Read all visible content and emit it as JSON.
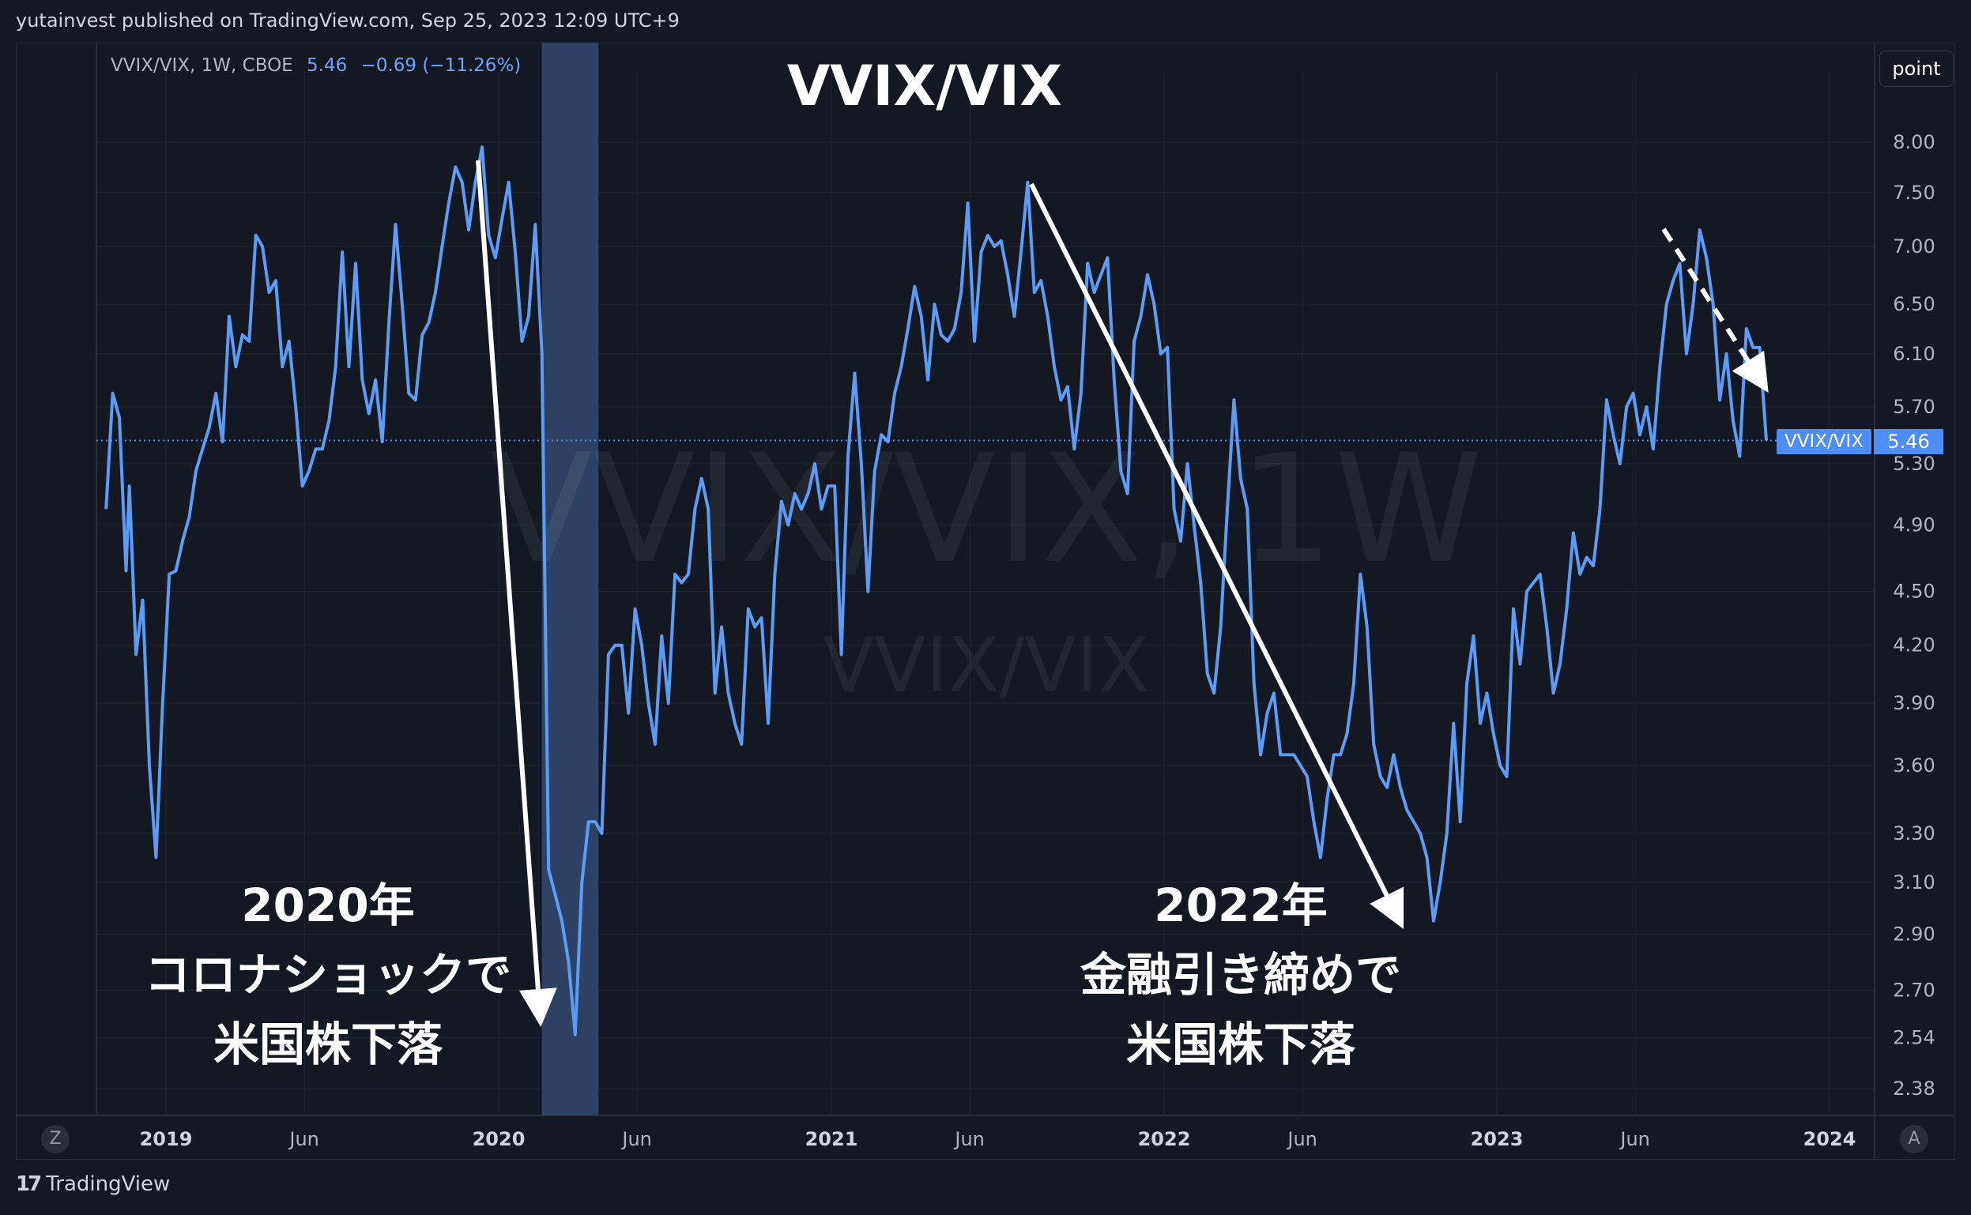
{
  "header": {
    "text": "yutainvest published on TradingView.com, Sep 25, 2023 12:09 UTC+9"
  },
  "legend": {
    "symbol": "VVIX/VIX, 1W, CBOE",
    "value": "5.46",
    "change": "−0.69 (−11.26%)"
  },
  "toolbar": {
    "scale_mode": "point"
  },
  "watermark": {
    "main": "VVIX/VIX, 1W",
    "sub": "VVIX/VIX"
  },
  "annotations": {
    "title": "VVIX/VIX",
    "left": {
      "line1": "2020年",
      "line2": "コロナショックで",
      "line3": "米国株下落"
    },
    "right": {
      "line1": "2022年",
      "line2": "金融引き締めで",
      "line3": "米国株下落"
    }
  },
  "last_price": {
    "label": "VVIX/VIX",
    "value": "5.46"
  },
  "footer": {
    "brand": "TradingView",
    "logo": "17"
  },
  "corner": {
    "left": "Z",
    "right": "A"
  },
  "colors": {
    "line": "#5b9cf6",
    "background": "#141823",
    "highlight": "#2e4466",
    "grid": "#222632"
  },
  "chart_data": {
    "type": "line",
    "scale": "log",
    "series": [
      {
        "name": "VVIX/VIX"
      }
    ],
    "y_ticks": [
      8.0,
      7.5,
      7.0,
      6.5,
      6.1,
      5.7,
      5.3,
      4.9,
      4.5,
      4.2,
      3.9,
      3.6,
      3.3,
      3.1,
      2.9,
      2.7,
      2.54,
      2.38
    ],
    "y_tick_labels": [
      "8.00",
      "7.50",
      "7.00",
      "6.50",
      "6.10",
      "5.70",
      "5.30",
      "4.90",
      "4.50",
      "4.20",
      "3.90",
      "3.60",
      "3.30",
      "3.10",
      "2.90",
      "2.70",
      "2.54",
      "2.38"
    ],
    "x_ticks": [
      {
        "label": "2019",
        "t": 2019.0,
        "bold": true
      },
      {
        "label": "Jun",
        "t": 2019.416,
        "bold": false
      },
      {
        "label": "2020",
        "t": 2020.0,
        "bold": true
      },
      {
        "label": "Jun",
        "t": 2020.416,
        "bold": false
      },
      {
        "label": "2021",
        "t": 2021.0,
        "bold": true
      },
      {
        "label": "Jun",
        "t": 2021.416,
        "bold": false
      },
      {
        "label": "2022",
        "t": 2022.0,
        "bold": true
      },
      {
        "label": "Jun",
        "t": 2022.416,
        "bold": false
      },
      {
        "label": "2023",
        "t": 2023.0,
        "bold": true
      },
      {
        "label": "Jun",
        "t": 2023.416,
        "bold": false
      },
      {
        "label": "2024",
        "t": 2024.0,
        "bold": true
      }
    ],
    "highlight_range": [
      2020.13,
      2020.3
    ],
    "last_value": 5.46,
    "points": [
      [
        2018.82,
        5.0
      ],
      [
        2018.84,
        5.8
      ],
      [
        2018.86,
        5.62
      ],
      [
        2018.88,
        4.62
      ],
      [
        2018.89,
        5.15
      ],
      [
        2018.91,
        4.15
      ],
      [
        2018.93,
        4.45
      ],
      [
        2018.95,
        3.6
      ],
      [
        2018.97,
        3.2
      ],
      [
        2018.99,
        3.9
      ],
      [
        2019.01,
        4.6
      ],
      [
        2019.03,
        4.62
      ],
      [
        2019.05,
        4.8
      ],
      [
        2019.07,
        4.95
      ],
      [
        2019.09,
        5.25
      ],
      [
        2019.11,
        5.4
      ],
      [
        2019.13,
        5.55
      ],
      [
        2019.15,
        5.8
      ],
      [
        2019.17,
        5.45
      ],
      [
        2019.19,
        6.4
      ],
      [
        2019.21,
        6.0
      ],
      [
        2019.23,
        6.25
      ],
      [
        2019.25,
        6.2
      ],
      [
        2019.27,
        7.1
      ],
      [
        2019.29,
        7.0
      ],
      [
        2019.31,
        6.6
      ],
      [
        2019.33,
        6.7
      ],
      [
        2019.35,
        6.0
      ],
      [
        2019.37,
        6.2
      ],
      [
        2019.39,
        5.7
      ],
      [
        2019.41,
        5.15
      ],
      [
        2019.43,
        5.25
      ],
      [
        2019.45,
        5.4
      ],
      [
        2019.47,
        5.4
      ],
      [
        2019.49,
        5.6
      ],
      [
        2019.51,
        6.0
      ],
      [
        2019.53,
        6.95
      ],
      [
        2019.55,
        6.0
      ],
      [
        2019.57,
        6.85
      ],
      [
        2019.59,
        5.9
      ],
      [
        2019.61,
        5.65
      ],
      [
        2019.63,
        5.9
      ],
      [
        2019.65,
        5.45
      ],
      [
        2019.67,
        6.35
      ],
      [
        2019.69,
        7.2
      ],
      [
        2019.71,
        6.5
      ],
      [
        2019.73,
        5.8
      ],
      [
        2019.75,
        5.75
      ],
      [
        2019.77,
        6.25
      ],
      [
        2019.79,
        6.35
      ],
      [
        2019.81,
        6.6
      ],
      [
        2019.83,
        7.0
      ],
      [
        2019.85,
        7.4
      ],
      [
        2019.87,
        7.75
      ],
      [
        2019.89,
        7.6
      ],
      [
        2019.91,
        7.15
      ],
      [
        2019.93,
        7.6
      ],
      [
        2019.95,
        7.95
      ],
      [
        2019.97,
        7.1
      ],
      [
        2019.99,
        6.9
      ],
      [
        2020.01,
        7.25
      ],
      [
        2020.03,
        7.6
      ],
      [
        2020.05,
        6.95
      ],
      [
        2020.07,
        6.2
      ],
      [
        2020.09,
        6.4
      ],
      [
        2020.11,
        7.2
      ],
      [
        2020.13,
        6.1
      ],
      [
        2020.15,
        3.15
      ],
      [
        2020.17,
        3.05
      ],
      [
        2020.19,
        2.95
      ],
      [
        2020.21,
        2.8
      ],
      [
        2020.23,
        2.55
      ],
      [
        2020.25,
        3.1
      ],
      [
        2020.27,
        3.35
      ],
      [
        2020.29,
        3.35
      ],
      [
        2020.31,
        3.3
      ],
      [
        2020.33,
        4.15
      ],
      [
        2020.35,
        4.2
      ],
      [
        2020.37,
        4.2
      ],
      [
        2020.39,
        3.85
      ],
      [
        2020.41,
        4.4
      ],
      [
        2020.43,
        4.2
      ],
      [
        2020.45,
        3.9
      ],
      [
        2020.47,
        3.7
      ],
      [
        2020.49,
        4.25
      ],
      [
        2020.51,
        3.9
      ],
      [
        2020.53,
        4.6
      ],
      [
        2020.55,
        4.55
      ],
      [
        2020.57,
        4.6
      ],
      [
        2020.59,
        5.0
      ],
      [
        2020.61,
        5.2
      ],
      [
        2020.63,
        5.0
      ],
      [
        2020.65,
        3.95
      ],
      [
        2020.67,
        4.3
      ],
      [
        2020.69,
        3.95
      ],
      [
        2020.71,
        3.8
      ],
      [
        2020.73,
        3.7
      ],
      [
        2020.75,
        4.4
      ],
      [
        2020.77,
        4.3
      ],
      [
        2020.79,
        4.35
      ],
      [
        2020.81,
        3.8
      ],
      [
        2020.83,
        4.6
      ],
      [
        2020.85,
        5.05
      ],
      [
        2020.87,
        4.9
      ],
      [
        2020.89,
        5.1
      ],
      [
        2020.91,
        5.0
      ],
      [
        2020.93,
        5.1
      ],
      [
        2020.95,
        5.3
      ],
      [
        2020.97,
        5.0
      ],
      [
        2020.99,
        5.15
      ],
      [
        2021.01,
        5.15
      ],
      [
        2021.03,
        4.15
      ],
      [
        2021.05,
        5.35
      ],
      [
        2021.07,
        5.95
      ],
      [
        2021.09,
        5.3
      ],
      [
        2021.11,
        4.5
      ],
      [
        2021.13,
        5.25
      ],
      [
        2021.15,
        5.5
      ],
      [
        2021.17,
        5.45
      ],
      [
        2021.19,
        5.8
      ],
      [
        2021.21,
        6.0
      ],
      [
        2021.23,
        6.3
      ],
      [
        2021.25,
        6.65
      ],
      [
        2021.27,
        6.4
      ],
      [
        2021.29,
        5.9
      ],
      [
        2021.31,
        6.5
      ],
      [
        2021.33,
        6.25
      ],
      [
        2021.35,
        6.2
      ],
      [
        2021.37,
        6.3
      ],
      [
        2021.39,
        6.6
      ],
      [
        2021.41,
        7.4
      ],
      [
        2021.43,
        6.2
      ],
      [
        2021.45,
        6.95
      ],
      [
        2021.47,
        7.1
      ],
      [
        2021.49,
        7.0
      ],
      [
        2021.51,
        7.05
      ],
      [
        2021.53,
        6.75
      ],
      [
        2021.55,
        6.4
      ],
      [
        2021.57,
        6.95
      ],
      [
        2021.59,
        7.6
      ],
      [
        2021.61,
        6.6
      ],
      [
        2021.63,
        6.7
      ],
      [
        2021.65,
        6.4
      ],
      [
        2021.67,
        6.0
      ],
      [
        2021.69,
        5.75
      ],
      [
        2021.71,
        5.85
      ],
      [
        2021.73,
        5.4
      ],
      [
        2021.75,
        5.8
      ],
      [
        2021.77,
        6.85
      ],
      [
        2021.79,
        6.6
      ],
      [
        2021.81,
        6.75
      ],
      [
        2021.83,
        6.9
      ],
      [
        2021.85,
        5.9
      ],
      [
        2021.87,
        5.25
      ],
      [
        2021.89,
        5.1
      ],
      [
        2021.91,
        6.2
      ],
      [
        2021.93,
        6.4
      ],
      [
        2021.95,
        6.75
      ],
      [
        2021.97,
        6.5
      ],
      [
        2021.99,
        6.1
      ],
      [
        2022.01,
        6.15
      ],
      [
        2022.03,
        5.0
      ],
      [
        2022.05,
        4.8
      ],
      [
        2022.07,
        5.3
      ],
      [
        2022.09,
        4.9
      ],
      [
        2022.11,
        4.55
      ],
      [
        2022.13,
        4.05
      ],
      [
        2022.15,
        3.95
      ],
      [
        2022.17,
        4.3
      ],
      [
        2022.19,
        5.0
      ],
      [
        2022.21,
        5.75
      ],
      [
        2022.23,
        5.2
      ],
      [
        2022.25,
        5.0
      ],
      [
        2022.27,
        4.0
      ],
      [
        2022.29,
        3.65
      ],
      [
        2022.31,
        3.85
      ],
      [
        2022.33,
        3.95
      ],
      [
        2022.35,
        3.65
      ],
      [
        2022.37,
        3.65
      ],
      [
        2022.39,
        3.65
      ],
      [
        2022.41,
        3.6
      ],
      [
        2022.43,
        3.55
      ],
      [
        2022.45,
        3.35
      ],
      [
        2022.47,
        3.2
      ],
      [
        2022.49,
        3.45
      ],
      [
        2022.51,
        3.65
      ],
      [
        2022.53,
        3.65
      ],
      [
        2022.55,
        3.75
      ],
      [
        2022.57,
        4.0
      ],
      [
        2022.59,
        4.6
      ],
      [
        2022.61,
        4.3
      ],
      [
        2022.63,
        3.7
      ],
      [
        2022.65,
        3.55
      ],
      [
        2022.67,
        3.5
      ],
      [
        2022.69,
        3.65
      ],
      [
        2022.71,
        3.5
      ],
      [
        2022.73,
        3.4
      ],
      [
        2022.75,
        3.35
      ],
      [
        2022.77,
        3.3
      ],
      [
        2022.79,
        3.2
      ],
      [
        2022.81,
        2.95
      ],
      [
        2022.83,
        3.1
      ],
      [
        2022.85,
        3.3
      ],
      [
        2022.87,
        3.8
      ],
      [
        2022.89,
        3.35
      ],
      [
        2022.91,
        4.0
      ],
      [
        2022.93,
        4.25
      ],
      [
        2022.95,
        3.8
      ],
      [
        2022.97,
        3.95
      ],
      [
        2022.99,
        3.75
      ],
      [
        2023.01,
        3.6
      ],
      [
        2023.03,
        3.55
      ],
      [
        2023.05,
        4.4
      ],
      [
        2023.07,
        4.1
      ],
      [
        2023.09,
        4.5
      ],
      [
        2023.11,
        4.55
      ],
      [
        2023.13,
        4.6
      ],
      [
        2023.15,
        4.3
      ],
      [
        2023.17,
        3.95
      ],
      [
        2023.19,
        4.1
      ],
      [
        2023.21,
        4.4
      ],
      [
        2023.23,
        4.85
      ],
      [
        2023.25,
        4.6
      ],
      [
        2023.27,
        4.7
      ],
      [
        2023.29,
        4.65
      ],
      [
        2023.31,
        5.0
      ],
      [
        2023.33,
        5.75
      ],
      [
        2023.35,
        5.5
      ],
      [
        2023.37,
        5.3
      ],
      [
        2023.39,
        5.7
      ],
      [
        2023.41,
        5.8
      ],
      [
        2023.43,
        5.5
      ],
      [
        2023.45,
        5.7
      ],
      [
        2023.47,
        5.4
      ],
      [
        2023.49,
        6.0
      ],
      [
        2023.51,
        6.5
      ],
      [
        2023.53,
        6.7
      ],
      [
        2023.55,
        6.85
      ],
      [
        2023.57,
        6.1
      ],
      [
        2023.59,
        6.5
      ],
      [
        2023.61,
        7.15
      ],
      [
        2023.63,
        6.9
      ],
      [
        2023.65,
        6.5
      ],
      [
        2023.67,
        5.75
      ],
      [
        2023.69,
        6.1
      ],
      [
        2023.71,
        5.6
      ],
      [
        2023.73,
        5.35
      ],
      [
        2023.75,
        6.3
      ],
      [
        2023.77,
        6.15
      ],
      [
        2023.79,
        6.15
      ],
      [
        2023.81,
        5.46
      ]
    ]
  }
}
